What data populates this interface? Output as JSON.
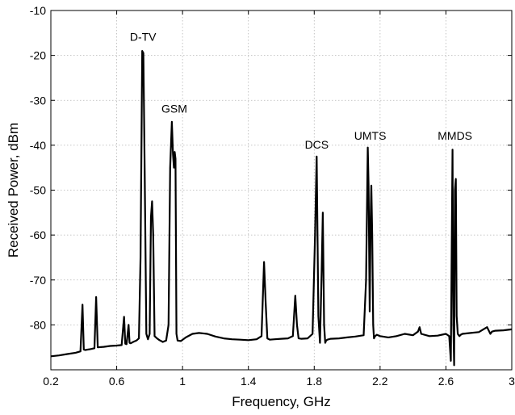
{
  "chart_data": {
    "type": "line",
    "xlabel": "Frequency, GHz",
    "ylabel": "Received Power, dBm",
    "xlim": [
      0.2,
      3.0
    ],
    "ylim": [
      -90,
      -10
    ],
    "x_ticks": [
      "0.2",
      "0.6",
      "1",
      "1.4",
      "1.8",
      "2.2",
      "2.6",
      "3"
    ],
    "y_ticks": [
      "-10",
      "-20",
      "-30",
      "-40",
      "-50",
      "-60",
      "-70",
      "-80"
    ],
    "grid": true,
    "line_color": "#000000",
    "annotations": [
      {
        "text": "D-TV",
        "x": 0.76,
        "y": -17.5
      },
      {
        "text": "GSM",
        "x": 0.95,
        "y": -33.5
      },
      {
        "text": "DCS",
        "x": 1.815,
        "y": -41.5
      },
      {
        "text": "UMTS",
        "x": 2.14,
        "y": -39.5
      },
      {
        "text": "MMDS",
        "x": 2.655,
        "y": -39.5
      }
    ],
    "series": [
      {
        "x": [
          0.2,
          0.25,
          0.3,
          0.35,
          0.38,
          0.392,
          0.4,
          0.408,
          0.44,
          0.465,
          0.475,
          0.485,
          0.52,
          0.56,
          0.6,
          0.63,
          0.645,
          0.652,
          0.66,
          0.672,
          0.678,
          0.685,
          0.7,
          0.72,
          0.735,
          0.745,
          0.755,
          0.762,
          0.77,
          0.78,
          0.79,
          0.8,
          0.808,
          0.815,
          0.822,
          0.83,
          0.845,
          0.86,
          0.88,
          0.9,
          0.915,
          0.925,
          0.935,
          0.942,
          0.948,
          0.952,
          0.957,
          0.963,
          0.97,
          0.99,
          1.02,
          1.06,
          1.1,
          1.15,
          1.2,
          1.25,
          1.3,
          1.35,
          1.4,
          1.45,
          1.48,
          1.495,
          1.505,
          1.515,
          1.53,
          1.56,
          1.6,
          1.64,
          1.67,
          1.685,
          1.695,
          1.705,
          1.72,
          1.76,
          1.79,
          1.805,
          1.815,
          1.825,
          1.835,
          1.845,
          1.852,
          1.86,
          1.867,
          1.872,
          1.88,
          1.9,
          1.95,
          2.0,
          2.05,
          2.1,
          2.115,
          2.125,
          2.13,
          2.137,
          2.143,
          2.147,
          2.152,
          2.158,
          2.163,
          2.17,
          2.18,
          2.2,
          2.25,
          2.3,
          2.35,
          2.4,
          2.43,
          2.44,
          2.45,
          2.5,
          2.55,
          2.6,
          2.62,
          2.63,
          2.64,
          2.645,
          2.65,
          2.655,
          2.66,
          2.665,
          2.672,
          2.678,
          2.682,
          2.69,
          2.7,
          2.75,
          2.8,
          2.85,
          2.87,
          2.88,
          2.9,
          2.95,
          3.0
        ],
        "y": [
          -87,
          -86.8,
          -86.5,
          -86.2,
          -85.9,
          -75.5,
          -85.5,
          -85.6,
          -85.4,
          -85.2,
          -73.8,
          -85.0,
          -84.9,
          -84.7,
          -84.6,
          -84.5,
          -78.2,
          -84.2,
          -84.3,
          -80.0,
          -84.0,
          -84.1,
          -83.8,
          -83.5,
          -83.0,
          -65.0,
          -19.0,
          -19.5,
          -45.0,
          -82.0,
          -83.2,
          -82.0,
          -56.0,
          -52.5,
          -60.0,
          -82.5,
          -83.0,
          -83.4,
          -83.8,
          -83.5,
          -80.0,
          -45.0,
          -34.8,
          -42.0,
          -45.0,
          -41.5,
          -43.0,
          -82.0,
          -83.5,
          -83.6,
          -82.8,
          -82.0,
          -81.8,
          -82.0,
          -82.6,
          -83.0,
          -83.2,
          -83.3,
          -83.4,
          -83.2,
          -82.5,
          -66.0,
          -75.0,
          -83.0,
          -83.3,
          -83.2,
          -83.1,
          -83.0,
          -82.5,
          -73.5,
          -80.0,
          -83.0,
          -83.1,
          -83.0,
          -82.0,
          -60.0,
          -42.5,
          -78.0,
          -84.0,
          -68.0,
          -55.0,
          -80.0,
          -84.0,
          -83.5,
          -83.3,
          -83.1,
          -83.0,
          -82.8,
          -82.6,
          -82.3,
          -70.0,
          -40.5,
          -49.0,
          -77.0,
          -56.0,
          -49.0,
          -60.0,
          -80.0,
          -83.0,
          -82.5,
          -82.2,
          -82.5,
          -82.8,
          -82.5,
          -82.0,
          -82.3,
          -81.5,
          -80.5,
          -82.0,
          -82.5,
          -82.4,
          -82.0,
          -82.5,
          -88.0,
          -41.0,
          -80.0,
          -89.0,
          -50.0,
          -47.5,
          -78.0,
          -82.0,
          -82.3,
          -82.5,
          -82.2,
          -82.0,
          -81.8,
          -81.6,
          -80.5,
          -82.0,
          -81.5,
          -81.3,
          -81.2,
          -81.0
        ]
      }
    ]
  }
}
